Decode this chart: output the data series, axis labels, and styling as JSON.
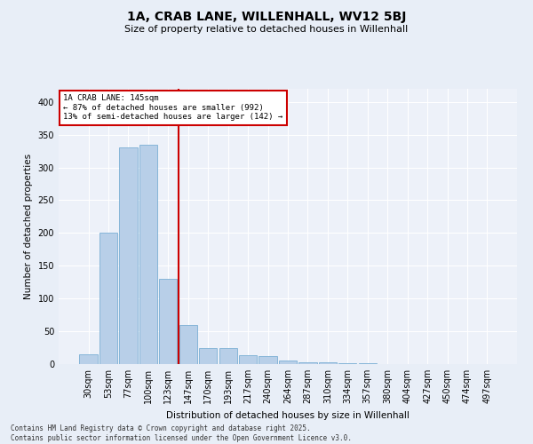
{
  "title1": "1A, CRAB LANE, WILLENHALL, WV12 5BJ",
  "title2": "Size of property relative to detached houses in Willenhall",
  "xlabel": "Distribution of detached houses by size in Willenhall",
  "ylabel": "Number of detached properties",
  "categories": [
    "30sqm",
    "53sqm",
    "77sqm",
    "100sqm",
    "123sqm",
    "147sqm",
    "170sqm",
    "193sqm",
    "217sqm",
    "240sqm",
    "264sqm",
    "287sqm",
    "310sqm",
    "334sqm",
    "357sqm",
    "380sqm",
    "404sqm",
    "427sqm",
    "450sqm",
    "474sqm",
    "497sqm"
  ],
  "values": [
    15,
    200,
    330,
    335,
    130,
    60,
    25,
    25,
    14,
    12,
    6,
    3,
    3,
    1,
    1,
    0,
    0,
    0,
    0,
    0,
    0
  ],
  "bar_color": "#b8cfe8",
  "bar_edge_color": "#7aafd4",
  "redline_index": 5,
  "annotation_line1": "1A CRAB LANE: 145sqm",
  "annotation_line2": "← 87% of detached houses are smaller (992)",
  "annotation_line3": "13% of semi-detached houses are larger (142) →",
  "annotation_box_color": "#ffffff",
  "annotation_box_edge": "#cc0000",
  "vline_color": "#cc0000",
  "ylim": [
    0,
    420
  ],
  "yticks": [
    0,
    50,
    100,
    150,
    200,
    250,
    300,
    350,
    400
  ],
  "footer1": "Contains HM Land Registry data © Crown copyright and database right 2025.",
  "footer2": "Contains public sector information licensed under the Open Government Licence v3.0.",
  "bg_color": "#e8eef7",
  "plot_bg_color": "#edf1f9"
}
